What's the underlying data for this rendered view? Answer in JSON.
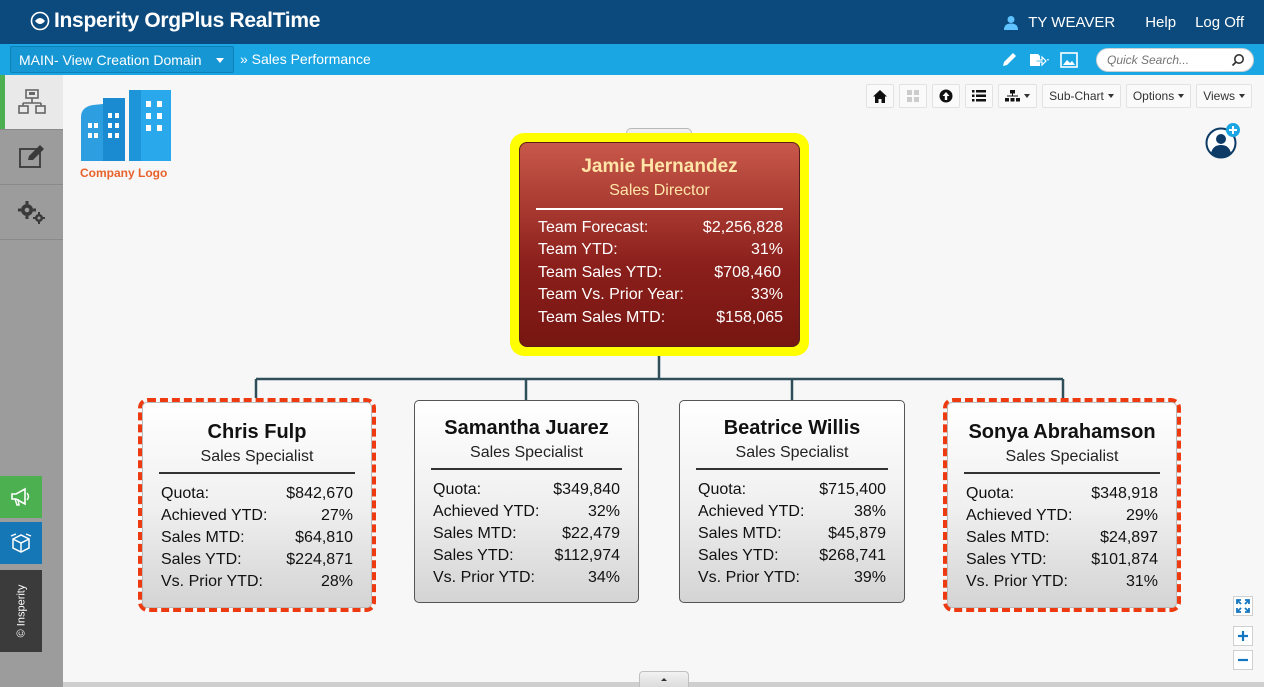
{
  "header": {
    "brand": "Insperity OrgPlus RealTime",
    "user": "TY WEAVER",
    "help": "Help",
    "logoff": "Log Off"
  },
  "subbar": {
    "domain": "MAIN- View Creation Domain",
    "breadcrumb": "» Sales Performance",
    "search_placeholder": "Quick Search..."
  },
  "toolbar": {
    "subchart": "Sub-Chart",
    "options": "Options",
    "views": "Views"
  },
  "logo": {
    "text": "Company Logo"
  },
  "rail": {
    "copyright": "© Insperity"
  },
  "colors": {
    "header": "#0c4a7d",
    "subbar": "#1aa5e3",
    "highlight": "#ffff00",
    "dashed_border": "#ee3a11",
    "root_card": "#8b1f1b"
  },
  "root": {
    "name": "Jamie Hernandez",
    "title": "Sales Director",
    "rows": [
      {
        "label": "Team Forecast:",
        "value": "$2,256,828"
      },
      {
        "label": "Team YTD:",
        "value": "31%"
      },
      {
        "label": "Team Sales YTD:",
        "value": "$708,460"
      },
      {
        "label": "Team Vs. Prior Year:",
        "value": "33%"
      },
      {
        "label": "Team Sales MTD:",
        "value": "$158,065"
      }
    ]
  },
  "reports": [
    {
      "name": "Chris Fulp",
      "title": "Sales Specialist",
      "flagged": true,
      "rows": [
        {
          "label": "Quota:",
          "value": "$842,670"
        },
        {
          "label": "Achieved YTD:",
          "value": "27%"
        },
        {
          "label": "Sales MTD:",
          "value": "$64,810"
        },
        {
          "label": "Sales YTD:",
          "value": "$224,871"
        },
        {
          "label": "Vs. Prior YTD:",
          "value": "28%"
        }
      ]
    },
    {
      "name": "Samantha Juarez",
      "title": "Sales Specialist",
      "flagged": false,
      "rows": [
        {
          "label": "Quota:",
          "value": "$349,840"
        },
        {
          "label": "Achieved YTD:",
          "value": "32%"
        },
        {
          "label": "Sales MTD:",
          "value": "$22,479"
        },
        {
          "label": "Sales YTD:",
          "value": "$112,974"
        },
        {
          "label": "Vs. Prior YTD:",
          "value": "34%"
        }
      ]
    },
    {
      "name": "Beatrice Willis",
      "title": "Sales Specialist",
      "flagged": false,
      "rows": [
        {
          "label": "Quota:",
          "value": "$715,400"
        },
        {
          "label": "Achieved YTD:",
          "value": "38%"
        },
        {
          "label": "Sales MTD:",
          "value": "$45,879"
        },
        {
          "label": "Sales YTD:",
          "value": "$268,741"
        },
        {
          "label": "Vs. Prior YTD:",
          "value": "39%"
        }
      ]
    },
    {
      "name": "Sonya Abrahamson",
      "title": "Sales Specialist",
      "flagged": true,
      "rows": [
        {
          "label": "Quota:",
          "value": "$348,918"
        },
        {
          "label": "Achieved YTD:",
          "value": "29%"
        },
        {
          "label": "Sales MTD:",
          "value": "$24,897"
        },
        {
          "label": "Sales YTD:",
          "value": "$101,874"
        },
        {
          "label": "Vs. Prior YTD:",
          "value": "31%"
        }
      ]
    }
  ]
}
